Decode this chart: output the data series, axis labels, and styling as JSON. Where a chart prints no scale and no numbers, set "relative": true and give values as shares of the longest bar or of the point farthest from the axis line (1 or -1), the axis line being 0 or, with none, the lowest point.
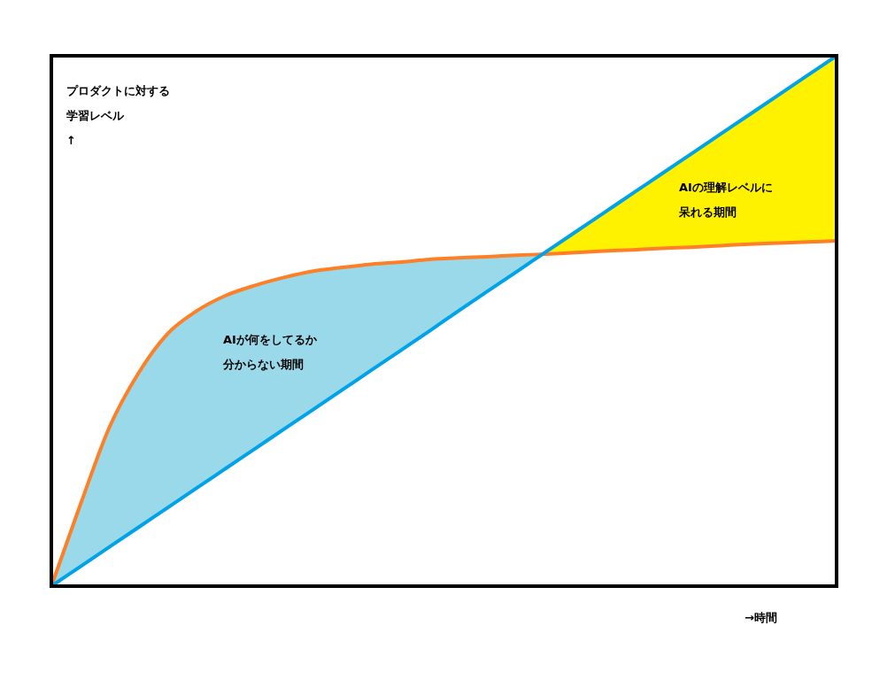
{
  "chart_data": {
    "type": "line",
    "relative": true,
    "ylabel": "プロダクトに対する学習レベル↑",
    "xlabel": "→時間",
    "categories": [
      null,
      null,
      null,
      null,
      null,
      null,
      null,
      null,
      null,
      null,
      null,
      null,
      null,
      null,
      null,
      null,
      null,
      null,
      null,
      null,
      null,
      null,
      null,
      null,
      null,
      null,
      null,
      null
    ],
    "series": [
      {
        "color": "#99d9ea",
        "values": [
          null,
          null,
          null,
          null,
          null,
          null,
          null,
          null,
          null,
          null,
          null,
          null,
          null,
          null,
          null,
          null,
          null,
          null,
          null,
          null,
          null,
          null,
          null,
          null,
          null,
          null,
          null,
          null
        ],
        "upper": [
          0,
          0.154,
          0.3,
          0.402,
          0.476,
          0.519,
          0.548,
          0.567,
          0.582,
          0.594,
          0.601,
          0.607,
          0.611,
          0.616,
          0.619,
          0.621,
          0.624,
          0.626,
          null,
          null,
          null,
          null,
          null,
          null,
          null,
          null,
          null,
          null
        ],
        "lower": [
          0,
          0.037,
          0.074,
          0.111,
          0.148,
          0.185,
          0.222,
          0.259,
          0.296,
          0.333,
          0.37,
          0.407,
          0.444,
          0.481,
          0.519,
          0.556,
          0.593,
          0.63,
          null,
          null,
          null,
          null,
          null,
          null,
          null,
          null,
          null,
          null
        ]
      },
      {
        "color": "#fff200",
        "values": [
          null,
          null,
          null,
          null,
          null,
          null,
          null,
          null,
          null,
          null,
          null,
          null,
          null,
          null,
          null,
          null,
          null,
          null,
          null,
          null,
          null,
          null,
          null,
          null,
          null,
          null,
          null,
          null
        ],
        "upper": [
          null,
          null,
          null,
          null,
          null,
          null,
          null,
          null,
          null,
          null,
          null,
          null,
          null,
          null,
          null,
          null,
          null,
          0.63,
          0.667,
          0.704,
          0.741,
          0.778,
          0.815,
          0.852,
          0.889,
          0.926,
          0.963,
          1
        ],
        "lower": [
          null,
          null,
          null,
          null,
          null,
          null,
          null,
          null,
          null,
          null,
          null,
          null,
          null,
          null,
          null,
          null,
          null,
          0.626,
          0.629,
          0.632,
          0.634,
          0.637,
          0.639,
          0.642,
          0.645,
          0.647,
          0.649,
          0.651
        ]
      },
      {
        "color": "#ff7f27",
        "values": [
          0,
          0.154,
          0.3,
          0.402,
          0.476,
          0.519,
          0.548,
          0.567,
          0.582,
          0.594,
          0.601,
          0.607,
          0.611,
          0.616,
          0.619,
          0.621,
          0.624,
          0.626,
          0.629,
          0.632,
          0.634,
          0.637,
          0.639,
          0.642,
          0.645,
          0.647,
          0.649,
          0.651
        ]
      },
      {
        "color": "#00a2e8",
        "values": [
          0,
          0.037,
          0.074,
          0.111,
          0.148,
          0.185,
          0.222,
          0.259,
          0.296,
          0.333,
          0.37,
          0.407,
          0.444,
          0.481,
          0.519,
          0.556,
          0.593,
          0.63,
          0.667,
          0.704,
          0.741,
          0.778,
          0.815,
          0.852,
          0.889,
          0.926,
          0.963,
          1
        ]
      }
    ],
    "annotations": [
      "AIが何をしてるか分からない期間",
      "AIの理解レベルに呆れる期間"
    ]
  }
}
